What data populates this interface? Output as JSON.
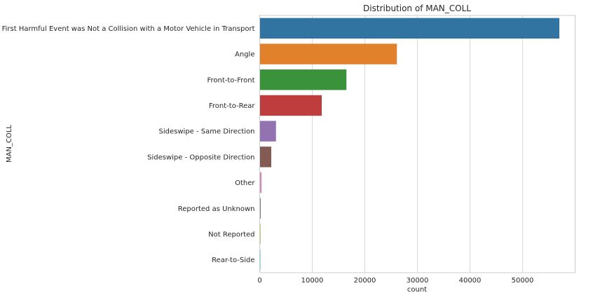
{
  "chart_data": {
    "type": "bar",
    "orientation": "horizontal",
    "title": "Distribution of MAN_COLL",
    "xlabel": "count",
    "ylabel": "MAN_COLL",
    "categories": [
      "The First Harmful Event was Not a Collision with a Motor Vehicle in Transport",
      "Angle",
      "Front-to-Front",
      "Front-to-Rear",
      "Sideswipe - Same Direction",
      "Sideswipe - Opposite Direction",
      "Other",
      "Reported as Unknown",
      "Not Reported",
      "Rear-to-Side"
    ],
    "values": [
      57000,
      26100,
      16500,
      11800,
      3100,
      2200,
      350,
      200,
      150,
      120
    ],
    "colors": [
      "#3274a1",
      "#e1812c",
      "#3a923a",
      "#c03d3e",
      "#9372b2",
      "#845b53",
      "#d684bd",
      "#7f7f7f",
      "#a9aa35",
      "#2ebdcc"
    ],
    "xlim": [
      0,
      60000
    ],
    "xticks": [
      0,
      10000,
      20000,
      30000,
      40000,
      50000
    ],
    "grid": true,
    "style": "whitegrid"
  }
}
